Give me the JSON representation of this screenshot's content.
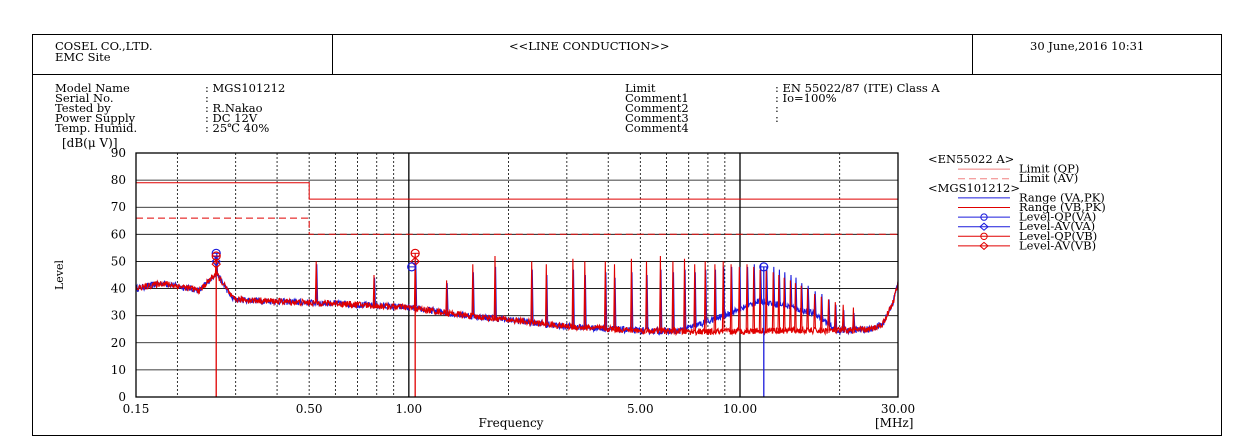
{
  "header": {
    "company": "COSEL CO.,LTD.",
    "site": "EMC Site",
    "title": "<<LINE CONDUCTION>>",
    "datetime": "30 June,2016 10:31"
  },
  "info_left": {
    "labels": [
      "Model Name",
      "Serial No.",
      "Tested by",
      "Power Supply",
      "Temp. Humid."
    ],
    "values": [
      ": MGS101212",
      ":",
      ": R.Nakao",
      ": DC 12V",
      ": 25℃ 40%"
    ]
  },
  "info_right": {
    "labels": [
      "Limit",
      "Comment1",
      "Comment2",
      "Comment3",
      "Comment4"
    ],
    "values": [
      ": EN 55022/87 (ITE) Class A",
      ": Io=100%",
      ":",
      ":",
      ""
    ]
  },
  "colors": {
    "red": "#e00000",
    "blue": "#1a1adc",
    "pink": "#f08080",
    "grid": "#000000"
  },
  "chart_data": {
    "type": "line",
    "xscale": "log",
    "xlim": [
      0.15,
      30
    ],
    "ylim": [
      0,
      90
    ],
    "yticks": [
      0,
      10,
      20,
      30,
      40,
      50,
      60,
      70,
      80,
      90
    ],
    "xtick_labels": [
      {
        "x": 0.15,
        "label": "0.15"
      },
      {
        "x": 0.5,
        "label": "0.50"
      },
      {
        "x": 1.0,
        "label": "1.00"
      },
      {
        "x": 5.0,
        "label": "5.00"
      },
      {
        "x": 10.0,
        "label": "10.00"
      },
      {
        "x": 30.0,
        "label": "30.00"
      }
    ],
    "xlabel": "Frequency",
    "xunit": "[MHz]",
    "yunit": "[dB(μ V)]",
    "ylabel": "Level",
    "legend": {
      "group1": "<EN55022 A>",
      "group2": "<MGS101212>",
      "entries": [
        {
          "label": "Limit (QP)",
          "color": "#f08080",
          "style": "solid",
          "marker": ""
        },
        {
          "label": "Limit (AV)",
          "color": "#f08080",
          "style": "dashed",
          "marker": ""
        },
        {
          "label": "Range (VA,PK)",
          "color": "#1a1adc",
          "style": "solid",
          "marker": ""
        },
        {
          "label": "Range (VB,PK)",
          "color": "#e00000",
          "style": "solid",
          "marker": ""
        },
        {
          "label": "Level-QP(VA)",
          "color": "#1a1adc",
          "style": "solid",
          "marker": "circle"
        },
        {
          "label": "Level-AV(VA)",
          "color": "#1a1adc",
          "style": "solid",
          "marker": "diamond"
        },
        {
          "label": "Level-QP(VB)",
          "color": "#e00000",
          "style": "solid",
          "marker": "circle"
        },
        {
          "label": "Level-AV(VB)",
          "color": "#e00000",
          "style": "solid",
          "marker": "diamond"
        }
      ]
    },
    "limits": [
      {
        "name": "Limit (QP)",
        "points": [
          [
            0.15,
            79
          ],
          [
            0.5,
            79
          ],
          [
            0.5,
            73
          ],
          [
            30,
            73
          ]
        ]
      },
      {
        "name": "Limit (AV)",
        "points": [
          [
            0.15,
            66
          ],
          [
            0.5,
            66
          ],
          [
            0.5,
            60
          ],
          [
            30,
            60
          ]
        ]
      }
    ],
    "base_profile": [
      [
        0.15,
        40
      ],
      [
        0.18,
        42
      ],
      [
        0.22,
        40
      ],
      [
        0.3,
        36
      ],
      [
        0.45,
        35
      ],
      [
        0.6,
        34.5
      ],
      [
        1.0,
        33
      ],
      [
        1.5,
        30
      ],
      [
        2.0,
        28.5
      ],
      [
        3.0,
        26
      ],
      [
        5.0,
        24.5
      ],
      [
        8.0,
        24
      ],
      [
        12.0,
        24.5
      ],
      [
        20.0,
        24.5
      ],
      [
        25.0,
        25
      ],
      [
        27.0,
        27
      ],
      [
        29.0,
        35
      ],
      [
        30.0,
        42
      ]
    ],
    "blue_bump": [
      [
        6.5,
        0
      ],
      [
        9.0,
        6
      ],
      [
        11.5,
        11
      ],
      [
        14.0,
        9
      ],
      [
        17.0,
        6
      ],
      [
        19.5,
        0
      ]
    ],
    "peaks": [
      {
        "f": 0.262,
        "red": 52,
        "blue": 53
      },
      {
        "f": 0.525,
        "red": 50,
        "blue": 49
      },
      {
        "f": 0.785,
        "red": 45,
        "blue": 44
      },
      {
        "f": 1.045,
        "red": 53,
        "blue": 50
      },
      {
        "f": 1.3,
        "red": 43,
        "blue": 42
      },
      {
        "f": 1.56,
        "red": 49,
        "blue": 46
      },
      {
        "f": 1.82,
        "red": 52,
        "blue": 48
      },
      {
        "f": 2.35,
        "red": 50,
        "blue": 47
      },
      {
        "f": 2.6,
        "red": 49,
        "blue": 45
      },
      {
        "f": 3.13,
        "red": 51,
        "blue": 47
      },
      {
        "f": 3.4,
        "red": 50,
        "blue": 45
      },
      {
        "f": 3.92,
        "red": 50,
        "blue": 46
      },
      {
        "f": 4.18,
        "red": 49,
        "blue": 44
      },
      {
        "f": 4.7,
        "red": 51,
        "blue": 46
      },
      {
        "f": 5.22,
        "red": 50,
        "blue": 45
      },
      {
        "f": 5.75,
        "red": 52,
        "blue": 47
      },
      {
        "f": 6.27,
        "red": 50,
        "blue": 46
      },
      {
        "f": 6.8,
        "red": 51,
        "blue": 47
      },
      {
        "f": 7.3,
        "red": 49,
        "blue": 46
      },
      {
        "f": 7.85,
        "red": 50,
        "blue": 47
      },
      {
        "f": 8.4,
        "red": 49,
        "blue": 47
      },
      {
        "f": 8.9,
        "red": 50,
        "blue": 48
      },
      {
        "f": 9.4,
        "red": 49,
        "blue": 48
      },
      {
        "f": 9.95,
        "red": 48,
        "blue": 48
      },
      {
        "f": 10.5,
        "red": 49,
        "blue": 48
      },
      {
        "f": 11.0,
        "red": 48,
        "blue": 49
      },
      {
        "f": 11.5,
        "red": 47,
        "blue": 49
      },
      {
        "f": 12.0,
        "red": 47,
        "blue": 48
      },
      {
        "f": 12.6,
        "red": 46,
        "blue": 48
      },
      {
        "f": 13.1,
        "red": 45,
        "blue": 47
      },
      {
        "f": 13.6,
        "red": 44,
        "blue": 46
      },
      {
        "f": 14.2,
        "red": 43,
        "blue": 45
      },
      {
        "f": 14.7,
        "red": 42,
        "blue": 44
      },
      {
        "f": 15.3,
        "red": 41,
        "blue": 42
      },
      {
        "f": 16.0,
        "red": 40,
        "blue": 41
      },
      {
        "f": 16.8,
        "red": 38,
        "blue": 39
      },
      {
        "f": 17.6,
        "red": 37,
        "blue": 38
      },
      {
        "f": 18.5,
        "red": 36,
        "blue": 36
      },
      {
        "f": 19.4,
        "red": 35,
        "blue": 34
      },
      {
        "f": 20.5,
        "red": 34,
        "blue": 32
      },
      {
        "f": 22.0,
        "red": 33,
        "blue": 31
      }
    ],
    "markers": [
      {
        "series": "Level-QP(VA)",
        "f": 0.262,
        "y": 53
      },
      {
        "series": "Level-AV(VA)",
        "f": 0.262,
        "y": 50
      },
      {
        "series": "Level-QP(VB)",
        "f": 0.262,
        "y": 52
      },
      {
        "series": "Level-AV(VB)",
        "f": 0.262,
        "y": 49
      },
      {
        "series": "Level-QP(VB)",
        "f": 1.045,
        "y": 53
      },
      {
        "series": "Level-AV(VB)",
        "f": 1.045,
        "y": 50
      },
      {
        "series": "Level-QP(VA)",
        "f": 1.02,
        "y": 48
      },
      {
        "series": "Level-QP(VA)",
        "f": 11.8,
        "y": 48
      }
    ],
    "av_drops": [
      {
        "f": 0.262,
        "color": "red"
      },
      {
        "f": 1.045,
        "color": "red"
      },
      {
        "f": 11.8,
        "color": "blue"
      }
    ]
  }
}
